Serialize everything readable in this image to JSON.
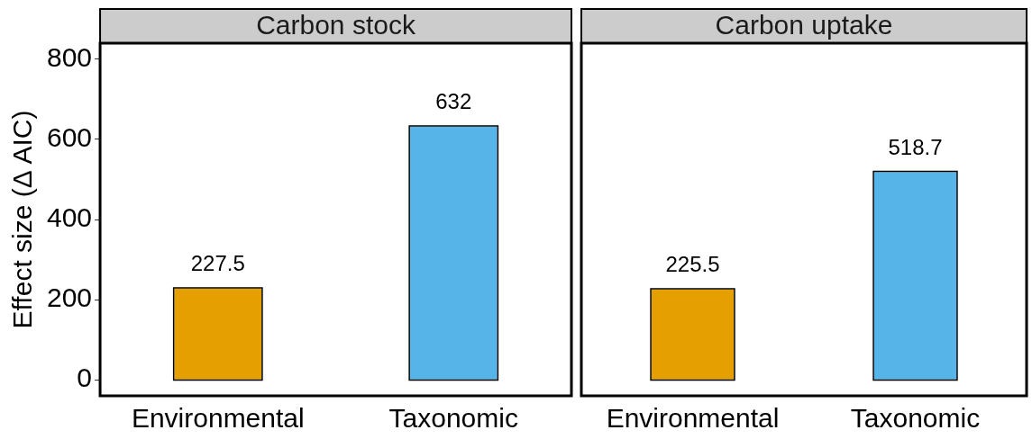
{
  "chart_data": [
    {
      "type": "bar",
      "title": "Carbon stock",
      "ylabel": "Effect size (Δ AIC)",
      "categories": [
        "Environmental",
        "Taxonomic"
      ],
      "values": [
        227.5,
        632
      ],
      "colors": [
        "#e69f00",
        "#56b4e9"
      ],
      "ylim": [
        -40,
        840
      ],
      "yticks": [
        0,
        200,
        400,
        600,
        800
      ],
      "grid": false,
      "legend": false,
      "data_labels": true
    },
    {
      "type": "bar",
      "title": "Carbon uptake",
      "categories": [
        "Environmental",
        "Taxonomic"
      ],
      "values": [
        225.5,
        518.7
      ],
      "colors": [
        "#e69f00",
        "#56b4e9"
      ],
      "ylim": [
        -40,
        840
      ],
      "yticks": [
        0,
        200,
        400,
        600,
        800
      ],
      "grid": false,
      "legend": false,
      "data_labels": true,
      "tick_labels": "x"
    }
  ]
}
